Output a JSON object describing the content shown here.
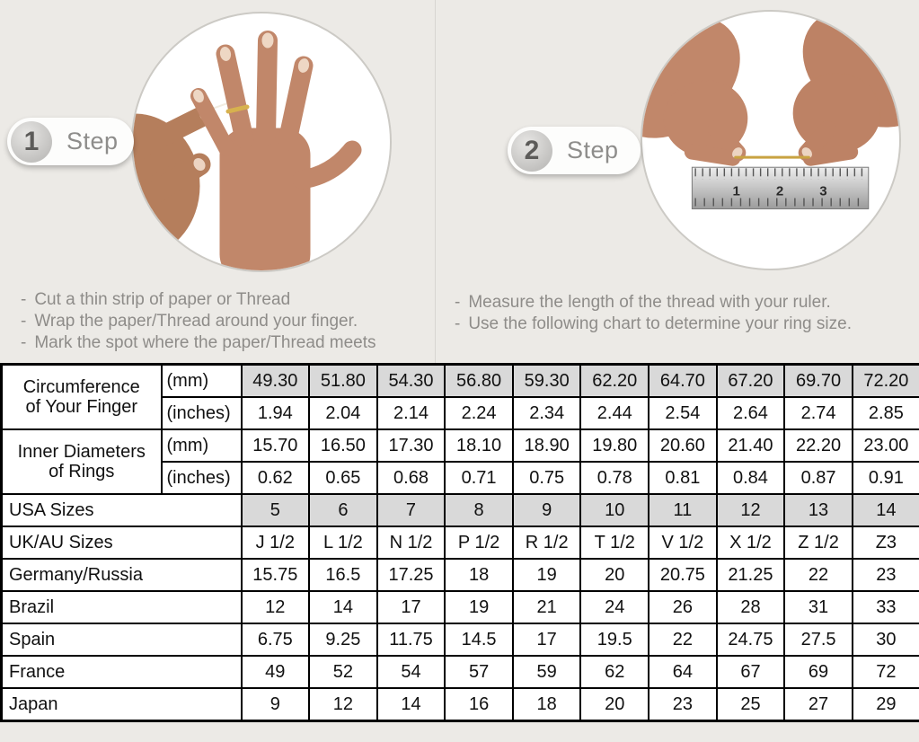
{
  "page": {
    "background": "#eceae6"
  },
  "bullets": {
    "dash": "-"
  },
  "steps": [
    {
      "number": "1",
      "label": "Step",
      "instructions": [
        "Cut a thin strip of paper or Thread",
        "Wrap the paper/Thread around your finger.",
        "Mark the spot where the paper/Thread meets"
      ]
    },
    {
      "number": "2",
      "label": "Step",
      "instructions": [
        "Measure the length of the thread with your ruler.",
        "Use the following chart to determine your ring size."
      ]
    }
  ],
  "ruler": {
    "numbers": [
      "1",
      "2",
      "3"
    ]
  },
  "size_chart": {
    "colors": {
      "shaded_cell": "#d9d9d9",
      "border": "#000000"
    },
    "groups": [
      {
        "label": "Circumference\nof Your Finger",
        "rows": [
          {
            "unit": "(mm)",
            "shaded": true,
            "values": [
              "49.30",
              "51.80",
              "54.30",
              "56.80",
              "59.30",
              "62.20",
              "64.70",
              "67.20",
              "69.70",
              "72.20"
            ]
          },
          {
            "unit": "(inches)",
            "shaded": false,
            "values": [
              "1.94",
              "2.04",
              "2.14",
              "2.24",
              "2.34",
              "2.44",
              "2.54",
              "2.64",
              "2.74",
              "2.85"
            ]
          }
        ]
      },
      {
        "label": "Inner Diameters\nof Rings",
        "rows": [
          {
            "unit": "(mm)",
            "shaded": false,
            "values": [
              "15.70",
              "16.50",
              "17.30",
              "18.10",
              "18.90",
              "19.80",
              "20.60",
              "21.40",
              "22.20",
              "23.00"
            ]
          },
          {
            "unit": "(inches)",
            "shaded": false,
            "values": [
              "0.62",
              "0.65",
              "0.68",
              "0.71",
              "0.75",
              "0.78",
              "0.81",
              "0.84",
              "0.87",
              "0.91"
            ]
          }
        ]
      }
    ],
    "simple_rows": [
      {
        "label": "USA Sizes",
        "shaded": true,
        "values": [
          "5",
          "6",
          "7",
          "8",
          "9",
          "10",
          "11",
          "12",
          "13",
          "14"
        ]
      },
      {
        "label": "UK/AU Sizes",
        "shaded": false,
        "values": [
          "J 1/2",
          "L 1/2",
          "N 1/2",
          "P 1/2",
          "R 1/2",
          "T 1/2",
          "V 1/2",
          "X 1/2",
          "Z 1/2",
          "Z3"
        ]
      },
      {
        "label": "Germany/Russia",
        "shaded": false,
        "values": [
          "15.75",
          "16.5",
          "17.25",
          "18",
          "19",
          "20",
          "20.75",
          "21.25",
          "22",
          "23"
        ]
      },
      {
        "label": "Brazil",
        "shaded": false,
        "values": [
          "12",
          "14",
          "17",
          "19",
          "21",
          "24",
          "26",
          "28",
          "31",
          "33"
        ]
      },
      {
        "label": "Spain",
        "shaded": false,
        "values": [
          "6.75",
          "9.25",
          "11.75",
          "14.5",
          "17",
          "19.5",
          "22",
          "24.75",
          "27.5",
          "30"
        ]
      },
      {
        "label": "France",
        "shaded": false,
        "values": [
          "49",
          "52",
          "54",
          "57",
          "59",
          "62",
          "64",
          "67",
          "69",
          "72"
        ]
      },
      {
        "label": "Japan",
        "shaded": false,
        "values": [
          "9",
          "12",
          "14",
          "16",
          "18",
          "20",
          "23",
          "25",
          "27",
          "29"
        ]
      }
    ]
  }
}
